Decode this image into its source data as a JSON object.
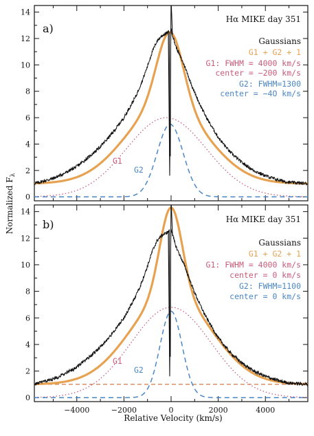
{
  "colors": {
    "observed": "#111111",
    "g1": "#c75b7a",
    "g2": "#4a86c5",
    "sum": "#e7a251",
    "continuum": "#d07a47"
  },
  "axes": {
    "xlabel": "Relative Velocity (km/s)",
    "ylabel_main": "Normalized F",
    "ylabel_sub": "λ",
    "xlim": [
      -5800,
      5800
    ],
    "ylim": [
      -0.3,
      14.5
    ],
    "xticks": [
      -4000,
      -2000,
      0,
      2000,
      4000
    ],
    "xtick_labels": [
      "−4000",
      "−2000",
      "0",
      "2000",
      "4000"
    ],
    "yticks": [
      0,
      2,
      4,
      6,
      8,
      10,
      12,
      14
    ],
    "ytick_labels": [
      "0",
      "2",
      "4",
      "6",
      "8",
      "10",
      "12",
      "14"
    ]
  },
  "chart_data": [
    {
      "type": "line",
      "panel": "a)",
      "title": "Hα MIKE day 351",
      "legend_heading": "Gaussians",
      "legend": [
        "G1 + G2 + 1",
        "G1: FWHM = 4000 km/s",
        "center = −200 km/s",
        "G2: FWHM=1300",
        "center = −4O km/s"
      ],
      "curve_labels": [
        "G1",
        "G2"
      ],
      "xlim": [
        -5800,
        5800
      ],
      "ylim": [
        -0.3,
        14.5
      ],
      "g1": {
        "amplitude": 6.0,
        "fwhm": 4000,
        "center": -200
      },
      "g2": {
        "amplitude": 5.5,
        "fwhm": 1300,
        "center": -40
      },
      "sum_offset": 1,
      "show_continuum_line": false,
      "observed": {
        "x": [
          -5800,
          -5000,
          -4500,
          -4000,
          -3500,
          -3000,
          -2500,
          -2000,
          -1500,
          -1200,
          -1000,
          -800,
          -600,
          -400,
          -200,
          -100,
          0,
          100,
          200,
          300,
          400,
          600,
          800,
          1000,
          1200,
          1500,
          2000,
          2500,
          3000,
          3500,
          4000,
          4500,
          5000,
          5800
        ],
        "y": [
          1.0,
          1.4,
          1.8,
          2.3,
          3.0,
          3.8,
          4.8,
          6.0,
          7.6,
          8.9,
          9.9,
          11.0,
          11.8,
          12.2,
          12.4,
          12.5,
          12.7,
          12.0,
          11.4,
          11.0,
          10.6,
          9.8,
          8.8,
          7.9,
          7.1,
          6.0,
          4.5,
          3.4,
          2.6,
          2.0,
          1.6,
          1.3,
          1.1,
          1.0
        ]
      },
      "narrow_line": {
        "center": 0,
        "peak": 14.5,
        "trough": 1.6
      }
    },
    {
      "type": "line",
      "panel": "b)",
      "title": "Hα MIKE day 351",
      "legend_heading": "Gaussians",
      "legend": [
        "G1 + G2 + 1",
        "G1: FWHM = 4000 km/s",
        "center = 0 km/s",
        "G2: FWHM=1100",
        "center = 0 km/s"
      ],
      "curve_labels": [
        "G1",
        "G2"
      ],
      "xlim": [
        -5800,
        5800
      ],
      "ylim": [
        -0.3,
        14.5
      ],
      "g1": {
        "amplitude": 6.8,
        "fwhm": 4000,
        "center": 0
      },
      "g2": {
        "amplitude": 6.5,
        "fwhm": 1100,
        "center": 0
      },
      "sum_offset": 1,
      "show_continuum_line": true,
      "continuum_level": 1,
      "observed": {
        "x": [
          -5800,
          -5000,
          -4500,
          -4000,
          -3500,
          -3000,
          -2500,
          -2000,
          -1500,
          -1200,
          -1000,
          -800,
          -600,
          -400,
          -200,
          -100,
          0,
          100,
          200,
          300,
          400,
          600,
          800,
          1000,
          1200,
          1500,
          2000,
          2500,
          3000,
          3500,
          4000,
          4500,
          5000,
          5800
        ],
        "y": [
          1.0,
          1.4,
          1.8,
          2.3,
          3.0,
          3.8,
          4.8,
          6.0,
          7.6,
          8.9,
          9.9,
          11.0,
          11.8,
          12.2,
          12.4,
          12.5,
          12.7,
          12.0,
          11.4,
          11.0,
          10.6,
          9.8,
          8.8,
          7.9,
          7.1,
          6.0,
          4.5,
          3.4,
          2.6,
          2.0,
          1.6,
          1.3,
          1.1,
          1.0
        ]
      },
      "narrow_line": {
        "center": 0,
        "peak": 14.5,
        "trough": 1.6
      }
    }
  ]
}
